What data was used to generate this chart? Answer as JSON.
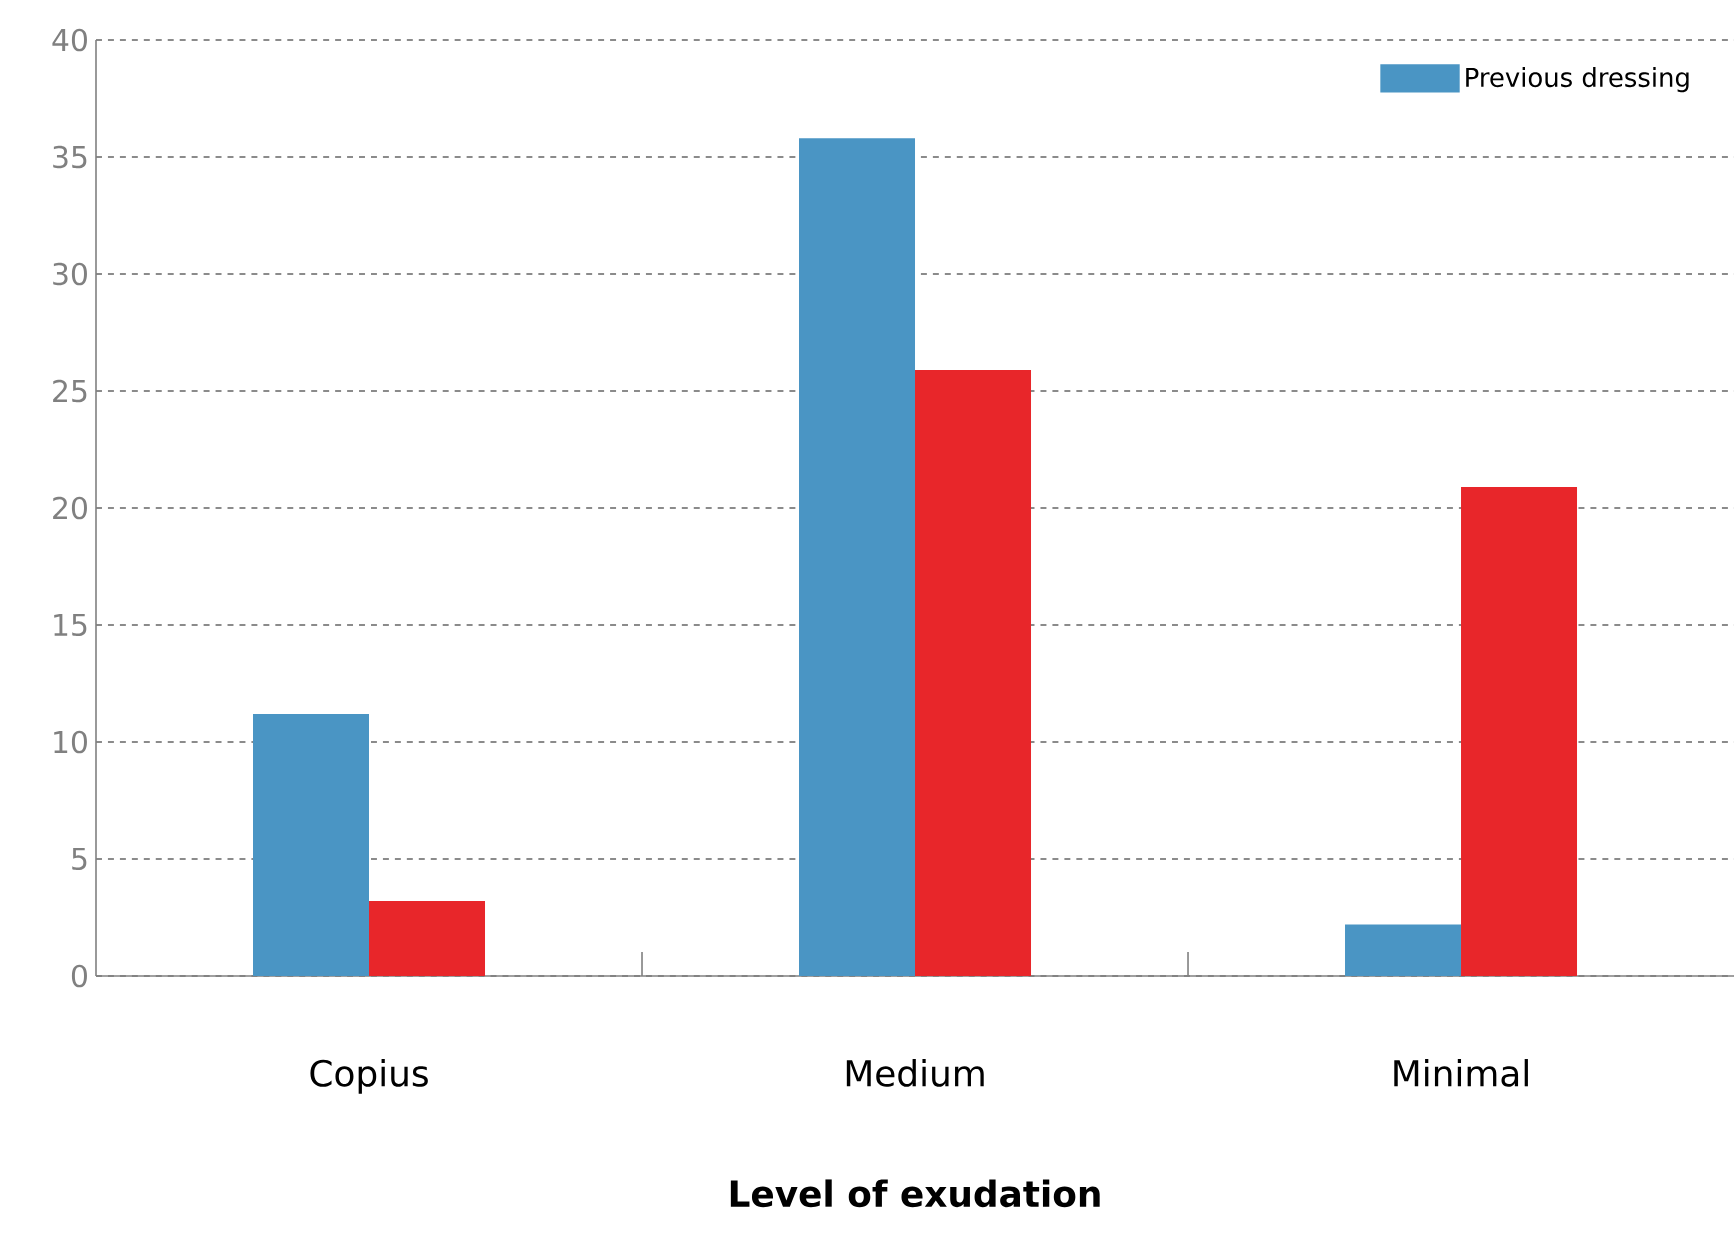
{
  "chart_data": {
    "type": "bar",
    "xlabel": "Level of exudation",
    "categories": [
      "Copius",
      "Medium",
      "Minimal"
    ],
    "series": [
      {
        "name": "Previous dressing",
        "color": "#4a95c4",
        "values": [
          11.2,
          35.8,
          2.2
        ]
      },
      {
        "color": "#e8262a",
        "values": [
          3.2,
          25.9,
          20.9
        ]
      }
    ],
    "ylim": [
      0,
      40
    ],
    "yticks": [
      0,
      5,
      10,
      15,
      20,
      25,
      30,
      35,
      40
    ],
    "grid": "y",
    "legend": "top right"
  }
}
